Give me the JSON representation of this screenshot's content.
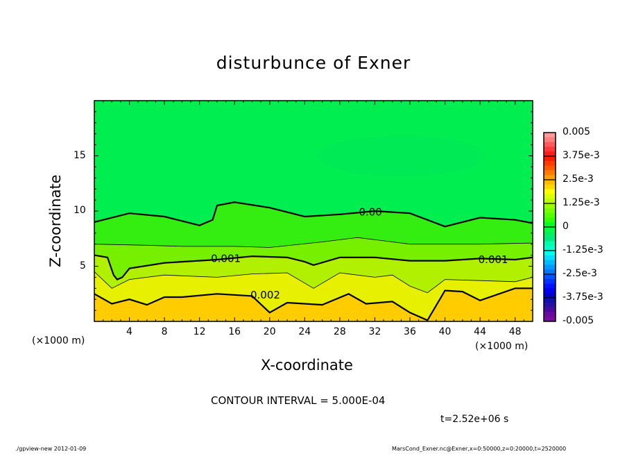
{
  "chart_data": {
    "type": "heatmap",
    "title": "disturbunce of Exner",
    "xlabel": "X-coordinate",
    "ylabel": "Z-coordinate",
    "x_unit": "(×1000 m)",
    "y_unit": "(×1000 m)",
    "xlim": [
      0,
      50
    ],
    "ylim": [
      0,
      20
    ],
    "xticks": [
      "4",
      "8",
      "12",
      "16",
      "20",
      "24",
      "28",
      "32",
      "36",
      "40",
      "44",
      "48"
    ],
    "yticks": [
      "5",
      "10",
      "15"
    ],
    "xtick_values": [
      4,
      8,
      12,
      16,
      20,
      24,
      28,
      32,
      36,
      40,
      44,
      48
    ],
    "ytick_values": [
      5,
      10,
      15
    ],
    "contour_interval": "CONTOUR INTERVAL = 5.000E-04",
    "time_label": "t=2.52e+06 s",
    "colorbar": {
      "range": [
        -0.005,
        0.005
      ],
      "labels": [
        "0.005",
        "3.75e-3",
        "2.5e-3",
        "1.25e-3",
        "0",
        "-1.25e-3",
        "-2.5e-3",
        "-3.75e-3",
        "-0.005"
      ],
      "colors": [
        "#ff9a9a",
        "#ff7f7f",
        "#ff5a5a",
        "#ff3a3a",
        "#ff1a1a",
        "#ff1a00",
        "#ff3c00",
        "#ff5a00",
        "#ff7c00",
        "#ff9c00",
        "#ffbb00",
        "#ffd800",
        "#ffff00",
        "#ddff00",
        "#bbff00",
        "#99ff00",
        "#77ff00",
        "#55ff00",
        "#33ff00",
        "#00ff20",
        "#00ff40",
        "#00f060",
        "#00e880",
        "#00ffaa",
        "#00ffcc",
        "#00ffee",
        "#00ddff",
        "#00bbff",
        "#0099ff",
        "#0077ff",
        "#0055ff",
        "#0033ff",
        "#0011ff",
        "#0000ee",
        "#0000cc",
        "#1010aa",
        "#2a10a0",
        "#4a0aa0",
        "#6a0aa0",
        "#7a0aa0"
      ]
    },
    "contours": [
      {
        "level": "0.00",
        "bold": true,
        "label": "0.00",
        "label_at": [
          31.5,
          9.9
        ],
        "points": [
          [
            0,
            9
          ],
          [
            4,
            9.8
          ],
          [
            8,
            9.5
          ],
          [
            12,
            8.7
          ],
          [
            13.5,
            9.2
          ],
          [
            14,
            10.5
          ],
          [
            16,
            10.8
          ],
          [
            20,
            10.3
          ],
          [
            24,
            9.5
          ],
          [
            28,
            9.7
          ],
          [
            32,
            10
          ],
          [
            36,
            9.8
          ],
          [
            40,
            8.6
          ],
          [
            44,
            9.4
          ],
          [
            48,
            9.2
          ],
          [
            50,
            8.9
          ]
        ]
      },
      {
        "level": "0.0005",
        "bold": false,
        "points": [
          [
            0,
            7
          ],
          [
            6,
            6.9
          ],
          [
            10,
            6.8
          ],
          [
            16,
            6.8
          ],
          [
            20,
            6.7
          ],
          [
            26,
            7.2
          ],
          [
            30,
            7.6
          ],
          [
            33,
            7.3
          ],
          [
            36,
            7
          ],
          [
            44,
            7
          ],
          [
            50,
            7.1
          ]
        ]
      },
      {
        "level": "0.001",
        "bold": true,
        "label": "0.001",
        "label_at": [
          15,
          5.7
        ],
        "label2": "0.001",
        "label2_at": [
          45.5,
          5.6
        ],
        "points": [
          [
            0,
            6
          ],
          [
            1.5,
            5.8
          ],
          [
            2.2,
            4.2
          ],
          [
            2.6,
            3.8
          ],
          [
            3.2,
            4
          ],
          [
            4,
            4.8
          ],
          [
            8,
            5.3
          ],
          [
            14,
            5.6
          ],
          [
            18,
            5.9
          ],
          [
            22,
            5.8
          ],
          [
            24,
            5.4
          ],
          [
            25,
            5.1
          ],
          [
            28,
            5.8
          ],
          [
            32,
            5.8
          ],
          [
            36,
            5.5
          ],
          [
            40,
            5.5
          ],
          [
            44,
            5.7
          ],
          [
            48,
            5.6
          ],
          [
            50,
            5.8
          ]
        ]
      },
      {
        "level": "0.0015",
        "bold": false,
        "points": [
          [
            0,
            4.5
          ],
          [
            2,
            3
          ],
          [
            4,
            3.8
          ],
          [
            8,
            4.2
          ],
          [
            14,
            4
          ],
          [
            18,
            4.3
          ],
          [
            22,
            4.4
          ],
          [
            25,
            3
          ],
          [
            28,
            4.4
          ],
          [
            32,
            4
          ],
          [
            34,
            4.2
          ],
          [
            36,
            3.2
          ],
          [
            38,
            2.6
          ],
          [
            40,
            3.8
          ],
          [
            44,
            3.7
          ],
          [
            48,
            3.6
          ],
          [
            50,
            4
          ]
        ]
      },
      {
        "level": "0.002",
        "bold": true,
        "label": "0.002",
        "label_at": [
          19.5,
          2.4
        ],
        "points": [
          [
            0,
            2.5
          ],
          [
            2,
            1.6
          ],
          [
            4,
            2
          ],
          [
            6,
            1.5
          ],
          [
            8,
            2.2
          ],
          [
            10,
            2.2
          ],
          [
            14,
            2.5
          ],
          [
            18,
            2.3
          ],
          [
            20,
            0.8
          ],
          [
            22,
            1.7
          ],
          [
            26,
            1.5
          ],
          [
            29,
            2.5
          ],
          [
            31,
            1.6
          ],
          [
            34,
            1.8
          ],
          [
            36,
            0.8
          ],
          [
            38,
            0.1
          ],
          [
            40,
            2.8
          ],
          [
            42,
            2.7
          ],
          [
            44,
            1.9
          ],
          [
            48,
            3
          ],
          [
            50,
            3
          ]
        ]
      }
    ],
    "band_colors": [
      "#00ee50",
      "#33ee10",
      "#77f000",
      "#b0f000",
      "#e6f000",
      "#ffcc00"
    ]
  },
  "footer": {
    "left": "./gpview-new   2012-01-09",
    "right": "MarsCond_Exner.nc@Exner,x=0:50000,z=0:20000,t=2520000"
  }
}
